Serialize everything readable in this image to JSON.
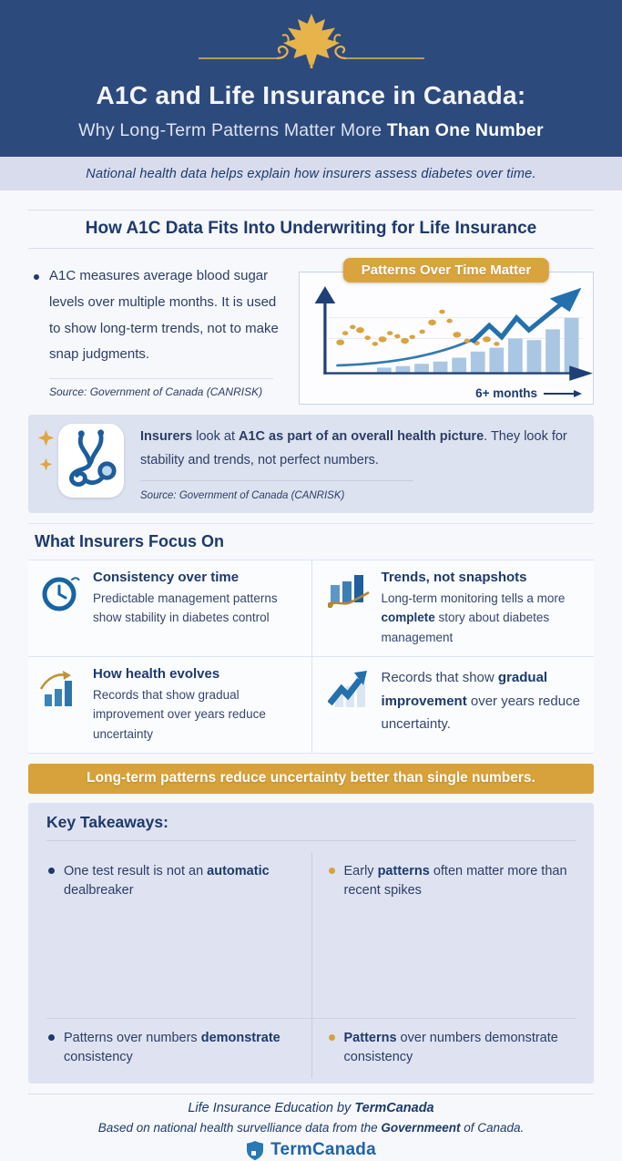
{
  "header": {
    "title": "A1C and Life Insurance in Canada:",
    "subtitle": [
      {
        "t": "Why Long-Term Patterns Matter More ",
        "b": false
      },
      {
        "t": "Than One Number",
        "b": true
      }
    ],
    "tagline": "National health data helps explain how insurers assess diabetes over time.",
    "ornament_icon": "maple-leaf-icon",
    "colors": {
      "background": "#2d4a7d",
      "gold": "#e7b34b"
    }
  },
  "underwriting_section": {
    "heading": "How A1C Data Fits Into Underwriting for Life Insurance",
    "bullet_text": "A1C measures average blood sugar levels over multiple months. It is used to show long-term trends, not to make snap judgments.",
    "source": "Source: Government of Canada (CANRISK)"
  },
  "chart": {
    "type": "decorative-trend",
    "badge": "Patterns Over Time Matter",
    "x_label": "6+ months",
    "bars_pct": [
      5,
      7,
      10,
      13,
      18,
      26,
      31,
      43,
      41,
      55,
      70
    ],
    "bars_start_pct": 17,
    "dots_pct": [
      [
        3,
        62
      ],
      [
        5,
        50
      ],
      [
        8,
        42
      ],
      [
        11,
        46
      ],
      [
        14,
        56
      ],
      [
        17,
        64
      ],
      [
        20,
        58
      ],
      [
        23,
        50
      ],
      [
        26,
        54
      ],
      [
        29,
        60
      ],
      [
        32,
        55
      ],
      [
        36,
        48
      ],
      [
        40,
        36
      ],
      [
        44,
        22
      ],
      [
        47,
        34
      ],
      [
        50,
        52
      ],
      [
        54,
        60
      ],
      [
        58,
        63
      ],
      [
        62,
        58
      ],
      [
        66,
        64
      ]
    ],
    "zigzag_pct": [
      [
        56,
        62
      ],
      [
        63,
        40
      ],
      [
        68,
        55
      ],
      [
        74,
        30
      ],
      [
        79,
        46
      ],
      [
        85,
        30
      ],
      [
        95,
        4
      ]
    ],
    "swoosh_pct": [
      [
        2,
        92
      ],
      [
        36,
        89
      ],
      [
        58,
        56
      ]
    ],
    "gridlines_pct": [
      30,
      57
    ],
    "colors": {
      "bars": "#a9c7e2",
      "line": "#2470ad",
      "dots": "#d9a43f",
      "axis": "#1f3f77",
      "swoosh": "#3579ae",
      "grid": "#e0e4eb"
    }
  },
  "highlight": {
    "icon": "stethoscope-icon",
    "text": [
      {
        "t": "Insurers",
        "b": true
      },
      {
        "t": " look at ",
        "b": false
      },
      {
        "t": "A1C as part of an overall health picture",
        "b": true
      },
      {
        "t": ". They look for stability and trends, not perfect numbers.",
        "b": false
      }
    ],
    "source": "Source: Government of Canada (CANRISK)"
  },
  "focus": {
    "heading": "What Insurers Focus On",
    "items": [
      {
        "icon": "clock-icon",
        "title": "Consistency over time",
        "body": [
          {
            "t": "Predictable management patterns show stability in diabetes control",
            "b": false
          }
        ]
      },
      {
        "icon": "bar-trend-icon",
        "title": "Trends, not snapshots",
        "body": [
          {
            "t": "Long-term monitoring tells a more ",
            "b": false
          },
          {
            "t": "complete",
            "b": true
          },
          {
            "t": " story about diabetes management",
            "b": false
          }
        ]
      },
      {
        "icon": "growth-bars-icon",
        "title": "How health evolves",
        "body": [
          {
            "t": "Records that show gradual improvement over years reduce uncertainty",
            "b": false
          }
        ]
      },
      {
        "icon": "rising-arrow-icon",
        "title": "",
        "body": [
          {
            "t": "Records that show ",
            "b": false
          },
          {
            "t": "gradual improvement",
            "b": true
          },
          {
            "t": " over years reduce uncertainty.",
            "b": false
          }
        ]
      }
    ]
  },
  "banner": {
    "text": "Long-term patterns reduce uncertainty better than single numbers.",
    "color": "#d7a23c"
  },
  "takeaways": {
    "heading": "Key Takeaways:",
    "left_items": [
      [
        {
          "t": "One test result is not an ",
          "b": false
        },
        {
          "t": "automatic",
          "b": true
        },
        {
          "t": " dealbreaker",
          "b": false
        }
      ],
      [
        {
          "t": "Patterns over numbers ",
          "b": false
        },
        {
          "t": "demonstrate",
          "b": true
        },
        {
          "t": " consistency",
          "b": false
        }
      ]
    ],
    "right_items": [
      [
        {
          "t": "Early ",
          "b": false
        },
        {
          "t": "patterns",
          "b": true
        },
        {
          "t": " often matter more than recent spikes",
          "b": false
        }
      ],
      [
        {
          "t": "Patterns",
          "b": true
        },
        {
          "t": " over numbers demonstrate consistency",
          "b": false
        }
      ]
    ],
    "left_bullet_color": "#1d3a6d",
    "right_bullet_color": "#d7a23c"
  },
  "footer": {
    "line1": [
      {
        "t": "Life Insurance Education by ",
        "b": false
      },
      {
        "t": "TermCanada",
        "b": true
      }
    ],
    "line2": [
      {
        "t": "Based on national health survelliance data from the ",
        "b": false
      },
      {
        "t": "Governmeent",
        "b": true
      },
      {
        "t": " of Canada.",
        "b": false
      }
    ],
    "brand": "TermCanada",
    "brand_icon": "shield-logo-icon"
  }
}
